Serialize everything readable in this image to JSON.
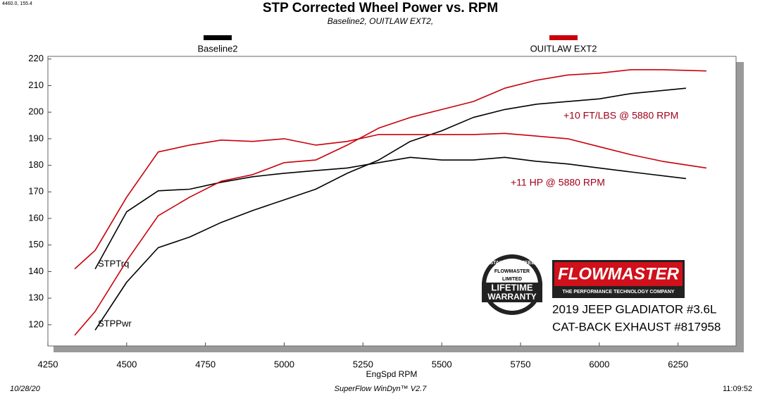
{
  "chart_data": {
    "type": "line",
    "title": "STP Corrected Wheel Power vs. RPM",
    "subtitle": "Baseline2, OUITLAW EXT2,",
    "cursor_readout": "4460.0, 155.4",
    "x_label": "EngSpd  RPM",
    "xlim": [
      4250,
      6434
    ],
    "ylim": [
      112,
      221
    ],
    "xticks": [
      4250,
      4500,
      4750,
      5000,
      5250,
      5500,
      5750,
      6000,
      6250
    ],
    "yticks": [
      120,
      130,
      140,
      150,
      160,
      170,
      180,
      190,
      200,
      210,
      220
    ],
    "grid": false,
    "curve_labels": [
      "STPTrq",
      "STPPwr"
    ],
    "series": [
      {
        "name": "Baseline2",
        "color": "#000000",
        "x": [
          4400,
          4500,
          4600,
          4700,
          4800,
          4900,
          5000,
          5100,
          5200,
          5300,
          5400,
          5500,
          5600,
          5700,
          5800,
          5900,
          6000,
          6100,
          6275
        ],
        "torque": [
          141,
          162.5,
          170.4,
          171,
          173.6,
          175.7,
          177,
          178,
          179,
          181,
          183,
          182,
          182,
          183,
          181.5,
          180.5,
          179,
          177.5,
          175
        ],
        "power": [
          118,
          136,
          149,
          153,
          158.5,
          163,
          167,
          171,
          177,
          182,
          189,
          193,
          198,
          201,
          203,
          204,
          205,
          207,
          209
        ]
      },
      {
        "name": "OUITLAW EXT2",
        "color": "#c8000a",
        "x": [
          4335,
          4400,
          4500,
          4600,
          4700,
          4800,
          4900,
          5000,
          5100,
          5200,
          5300,
          5400,
          5500,
          5600,
          5700,
          5800,
          5900,
          6000,
          6100,
          6200,
          6340
        ],
        "torque": [
          141,
          148,
          168,
          185,
          187.6,
          189.5,
          189,
          190,
          187.6,
          189,
          191.6,
          191.6,
          191.6,
          191.6,
          192,
          191,
          190,
          187,
          184,
          181.5,
          179
        ],
        "power": [
          116,
          125,
          144,
          161,
          168,
          174,
          176.5,
          181,
          182,
          187.6,
          194,
          198,
          201,
          204,
          209,
          212,
          214,
          214.7,
          216,
          216,
          215.5
        ]
      }
    ],
    "annotations": [
      "+10 FT/LBS @ 5880 RPM",
      "+11 HP @ 5880 RPM"
    ],
    "badge": {
      "top": "STAINLESS STEEL",
      "brand": "FLOWMASTER",
      "middle": "LIMITED",
      "line1": "LIFETIME",
      "line2": "WARRANTY"
    },
    "logo": {
      "brand": "FLOWMASTER",
      "tagline": "THE PERFORMANCE TECHNOLOGY COMPANY"
    },
    "vehicle": [
      "2019 JEEP GLADIATOR #3.6L",
      "CAT-BACK EXHAUST #817958"
    ],
    "footer": {
      "date": "10/28/20",
      "software": "SuperFlow WinDyn™ V2.7",
      "time": "11:09:52"
    }
  }
}
